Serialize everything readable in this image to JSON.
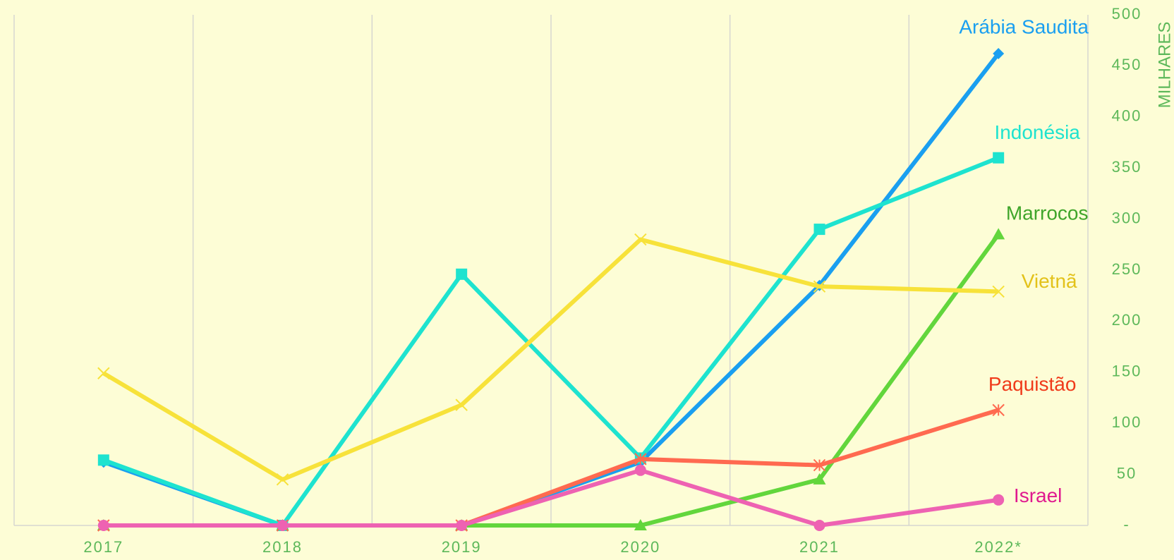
{
  "chart_data": {
    "type": "line",
    "y_axis_label": "MILHARES",
    "categories": [
      "2017",
      "2018",
      "2019",
      "2020",
      "2021",
      "2022*"
    ],
    "series": [
      {
        "name": "Arábia Saudita",
        "color": "#1a9ff0",
        "label_color": "#1a9ff0",
        "marker": "diamond",
        "values": [
          62,
          0,
          0,
          62,
          235,
          462
        ]
      },
      {
        "name": "Indonésia",
        "color": "#1ee3cf",
        "label_color": "#1ee3cf",
        "marker": "square",
        "values": [
          64,
          0,
          246,
          66,
          290,
          360
        ]
      },
      {
        "name": "Marrocos",
        "color": "#62d63c",
        "label_color": "#3fa52a",
        "marker": "triangle",
        "values": [
          0,
          0,
          0,
          0,
          45,
          285
        ]
      },
      {
        "name": "Vietnã",
        "color": "#f7e23a",
        "label_color": "#e3c21a",
        "marker": "x",
        "values": [
          149,
          45,
          118,
          280,
          234,
          229
        ]
      },
      {
        "name": "Paquistão",
        "color": "#ff6a50",
        "label_color": "#f03a1a",
        "marker": "asterisk",
        "values": [
          0,
          0,
          0,
          65,
          59,
          113
        ]
      },
      {
        "name": "Israel",
        "color": "#ee62b2",
        "label_color": "#e0198f",
        "marker": "circle",
        "values": [
          0,
          0,
          0,
          54,
          0,
          25
        ]
      }
    ],
    "ylim": [
      0,
      500
    ],
    "yticks": [
      {
        "value": 0,
        "label": "-"
      },
      50,
      100,
      150,
      200,
      250,
      300,
      350,
      400,
      450,
      500
    ],
    "grid": true
  }
}
